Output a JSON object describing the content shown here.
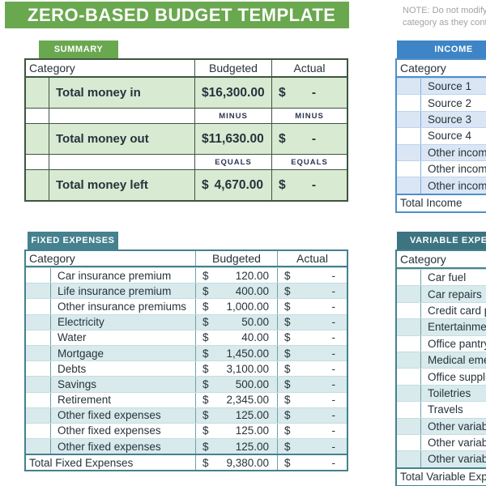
{
  "title": "ZERO-BASED BUDGET TEMPLATE",
  "note": {
    "line1": "NOTE: Do not modify the totals per",
    "line2": "category as they contain formulas."
  },
  "colors": {
    "green": "#6aa84f",
    "glight": "#d9ead3",
    "gb": "#3d553f",
    "blue": "#3d85c6",
    "blight": "#dbe6f5",
    "bbo": "#4f8fc9",
    "teal": "#45818e",
    "teal2": "#3d7482",
    "tlight": "#d8eaec",
    "tbo": "#45818e",
    "tbv": "#6f9fab",
    "tbh": "#c5dce0",
    "ink": "#26333b",
    "gray": "#a3a3a3"
  },
  "summary": {
    "badge": "SUMMARY",
    "headers": [
      "Category",
      "Budgeted",
      "Actual"
    ],
    "currency": "$",
    "actual_display": "-",
    "rows": [
      {
        "type": "data",
        "label": "Total money in",
        "budgeted": "16,300.00",
        "actual": "-"
      },
      {
        "type": "op",
        "budgeted": "MINUS",
        "actual": "MINUS"
      },
      {
        "type": "data",
        "label": "Total money out",
        "budgeted": "11,630.00",
        "actual": "-"
      },
      {
        "type": "op",
        "budgeted": "EQUALS",
        "actual": "EQUALS"
      },
      {
        "type": "data",
        "label": "Total money left",
        "budgeted": "4,670.00",
        "actual": "-"
      }
    ]
  },
  "income": {
    "badge": "INCOME",
    "headers": [
      "Category"
    ],
    "rows": [
      "Source 1",
      "Source 2",
      "Source 3",
      "Source 4",
      "Other income",
      "Other income",
      "Other income"
    ],
    "total_label": "Total Income"
  },
  "fixed": {
    "badge": "FIXED EXPENSES",
    "headers": [
      "Category",
      "Budgeted",
      "Actual"
    ],
    "currency": "$",
    "actual_display": "-",
    "rows": [
      {
        "label": "Car insurance premium",
        "budgeted": "120.00"
      },
      {
        "label": "Life insurance premium",
        "budgeted": "400.00"
      },
      {
        "label": "Other insurance premiums",
        "budgeted": "1,000.00"
      },
      {
        "label": "Electricity",
        "budgeted": "50.00"
      },
      {
        "label": "Water",
        "budgeted": "40.00"
      },
      {
        "label": "Mortgage",
        "budgeted": "1,450.00"
      },
      {
        "label": "Debts",
        "budgeted": "3,100.00"
      },
      {
        "label": "Savings",
        "budgeted": "500.00"
      },
      {
        "label": "Retirement",
        "budgeted": "2,345.00"
      },
      {
        "label": "Other fixed expenses",
        "budgeted": "125.00"
      },
      {
        "label": "Other fixed expenses",
        "budgeted": "125.00"
      },
      {
        "label": "Other fixed expenses",
        "budgeted": "125.00"
      }
    ],
    "total": {
      "label": "Total Fixed Expenses",
      "budgeted": "9,380.00",
      "actual": "-"
    }
  },
  "variable": {
    "badge": "VARIABLE EXPENSES",
    "headers": [
      "Category"
    ],
    "rows": [
      "Car fuel",
      "Car repairs",
      "Credit card payments",
      "Entertainment",
      "Office pantry",
      "Medical emergencies",
      "Office supplies",
      "Toiletries",
      "Travels",
      "Other variable expenses",
      "Other variable expenses",
      "Other variable expenses"
    ],
    "total_label": "Total Variable Expenses"
  }
}
